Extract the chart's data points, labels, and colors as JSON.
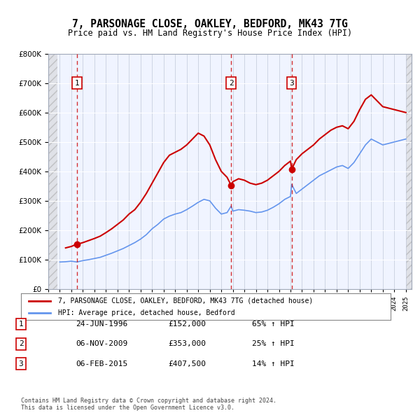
{
  "title": "7, PARSONAGE CLOSE, OAKLEY, BEDFORD, MK43 7TG",
  "subtitle": "Price paid vs. HM Land Registry's House Price Index (HPI)",
  "legend_line1": "7, PARSONAGE CLOSE, OAKLEY, BEDFORD, MK43 7TG (detached house)",
  "legend_line2": "HPI: Average price, detached house, Bedford",
  "transactions": [
    {
      "num": 1,
      "date": "1996-06-24",
      "price": 152000,
      "pct": "65%",
      "x_year": 1996.48
    },
    {
      "num": 2,
      "date": "2009-11-06",
      "price": 353000,
      "pct": "25%",
      "x_year": 2009.85
    },
    {
      "num": 3,
      "date": "2015-02-06",
      "price": 407500,
      "pct": "14%",
      "x_year": 2015.1
    }
  ],
  "transaction_labels": [
    {
      "num": "1",
      "date": "24-JUN-1996",
      "price": "£152,000",
      "pct": "65% ↑ HPI"
    },
    {
      "num": "2",
      "date": "06-NOV-2009",
      "price": "£353,000",
      "pct": "25% ↑ HPI"
    },
    {
      "num": "3",
      "date": "06-FEB-2015",
      "price": "£407,500",
      "pct": "14% ↑ HPI"
    }
  ],
  "footer": "Contains HM Land Registry data © Crown copyright and database right 2024.\nThis data is licensed under the Open Government Licence v3.0.",
  "hpi_color": "#6495ED",
  "price_color": "#CC0000",
  "vline_color": "#CC0000",
  "hatch_color": "#C0C0C0",
  "ylim": [
    0,
    800000
  ],
  "xlim_start": 1994.0,
  "xlim_end": 2025.5,
  "background_color": "#FFFFFF",
  "plot_bg_color": "#F0F4FF",
  "hpi_data_x": [
    1995.0,
    1995.5,
    1996.0,
    1996.48,
    1997.0,
    1997.5,
    1998.0,
    1998.5,
    1999.0,
    1999.5,
    2000.0,
    2000.5,
    2001.0,
    2001.5,
    2002.0,
    2002.5,
    2003.0,
    2003.5,
    2004.0,
    2004.5,
    2005.0,
    2005.5,
    2006.0,
    2006.5,
    2007.0,
    2007.5,
    2008.0,
    2008.5,
    2009.0,
    2009.5,
    2009.85,
    2010.0,
    2010.5,
    2011.0,
    2011.5,
    2012.0,
    2012.5,
    2013.0,
    2013.5,
    2014.0,
    2014.5,
    2015.0,
    2015.1,
    2015.5,
    2016.0,
    2016.5,
    2017.0,
    2017.5,
    2018.0,
    2018.5,
    2019.0,
    2019.5,
    2020.0,
    2020.5,
    2021.0,
    2021.5,
    2022.0,
    2022.5,
    2023.0,
    2023.5,
    2024.0,
    2024.5,
    2025.0
  ],
  "hpi_data_y": [
    92000,
    93000,
    95000,
    92000,
    97000,
    100000,
    104000,
    108000,
    115000,
    122000,
    130000,
    138000,
    148000,
    158000,
    170000,
    185000,
    205000,
    220000,
    238000,
    248000,
    255000,
    260000,
    270000,
    282000,
    295000,
    305000,
    300000,
    275000,
    255000,
    260000,
    282000,
    265000,
    270000,
    268000,
    265000,
    260000,
    262000,
    268000,
    278000,
    290000,
    305000,
    315000,
    356000,
    325000,
    340000,
    355000,
    370000,
    385000,
    395000,
    405000,
    415000,
    420000,
    410000,
    430000,
    460000,
    490000,
    510000,
    500000,
    490000,
    495000,
    500000,
    505000,
    510000
  ],
  "price_data_x": [
    1995.5,
    1996.0,
    1996.3,
    1996.48,
    1997.0,
    1997.5,
    1998.0,
    1998.5,
    1999.0,
    1999.5,
    2000.0,
    2000.5,
    2001.0,
    2001.5,
    2002.0,
    2002.5,
    2003.0,
    2003.5,
    2004.0,
    2004.5,
    2005.0,
    2005.5,
    2006.0,
    2006.5,
    2007.0,
    2007.5,
    2008.0,
    2008.5,
    2009.0,
    2009.5,
    2009.85,
    2010.0,
    2010.5,
    2011.0,
    2011.5,
    2012.0,
    2012.5,
    2013.0,
    2013.5,
    2014.0,
    2014.5,
    2015.0,
    2015.1,
    2015.5,
    2016.0,
    2016.5,
    2017.0,
    2017.5,
    2018.0,
    2018.5,
    2019.0,
    2019.5,
    2020.0,
    2020.5,
    2021.0,
    2021.5,
    2022.0,
    2022.5,
    2023.0,
    2023.5,
    2024.0,
    2024.5,
    2025.0
  ],
  "price_data_y": [
    140000,
    145000,
    150000,
    152000,
    158000,
    165000,
    172000,
    180000,
    192000,
    205000,
    220000,
    235000,
    255000,
    270000,
    295000,
    325000,
    360000,
    395000,
    430000,
    455000,
    465000,
    475000,
    490000,
    510000,
    530000,
    520000,
    490000,
    440000,
    400000,
    380000,
    353000,
    365000,
    375000,
    370000,
    360000,
    355000,
    360000,
    370000,
    385000,
    400000,
    420000,
    435000,
    407500,
    440000,
    460000,
    475000,
    490000,
    510000,
    525000,
    540000,
    550000,
    555000,
    545000,
    570000,
    610000,
    645000,
    660000,
    640000,
    620000,
    615000,
    610000,
    605000,
    600000
  ]
}
